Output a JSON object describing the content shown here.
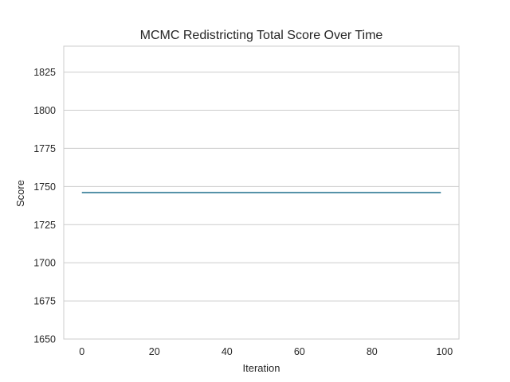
{
  "chart_data": {
    "type": "line",
    "title": "MCMC Redistricting Total Score Over Time",
    "xlabel": "Iteration",
    "ylabel": "Score",
    "xlim": [
      -5,
      104
    ],
    "ylim": [
      1650,
      1842
    ],
    "x_ticks": [
      0,
      20,
      40,
      60,
      80,
      100
    ],
    "y_ticks": [
      1650,
      1675,
      1700,
      1725,
      1750,
      1775,
      1800,
      1825
    ],
    "grid": "horizontal",
    "series": [
      {
        "color": "#1f6f8b",
        "x": [
          0,
          99
        ],
        "y": [
          1746,
          1746
        ]
      }
    ]
  },
  "colors": {
    "line": "#1f6f8b",
    "grid": "#cccccc",
    "spine": "#cccccc",
    "text": "#262626"
  }
}
